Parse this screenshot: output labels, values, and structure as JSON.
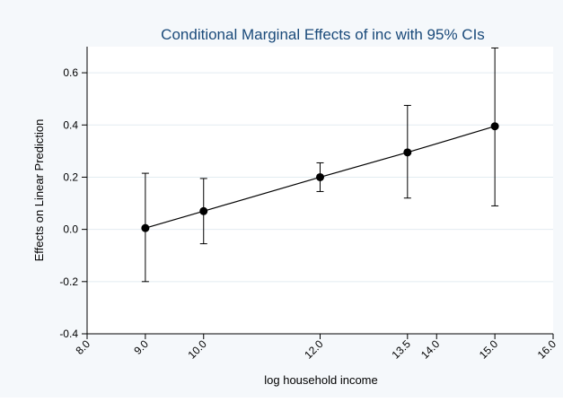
{
  "chart_data": {
    "type": "scatter",
    "title": "Conditional Marginal Effects of inc with 95% CIs",
    "xlabel": "log household income",
    "ylabel": "Effects on Linear Prediction",
    "xlim": [
      8.0,
      16.0
    ],
    "ylim": [
      -0.4,
      0.7
    ],
    "x_ticks": [
      8.0,
      9.0,
      10.0,
      12.0,
      13.5,
      14.0,
      15.0,
      16.0
    ],
    "x_tick_labels": [
      "8.0",
      "9.0",
      "10.0",
      "12.0",
      "13.5",
      "14.0",
      "15.0",
      "16.0"
    ],
    "y_ticks": [
      0.6,
      0.4,
      0.2,
      0.0,
      -0.2,
      -0.4
    ],
    "y_tick_labels": [
      "0.6",
      "0.4",
      "0.2",
      "0.0",
      "-0.2",
      "-0.4"
    ],
    "grid": true,
    "legend": "none",
    "connect_points": true,
    "points": [
      {
        "x": 9.0,
        "y": 0.005,
        "lower": -0.2,
        "upper": 0.215
      },
      {
        "x": 10.0,
        "y": 0.07,
        "lower": -0.055,
        "upper": 0.195
      },
      {
        "x": 12.0,
        "y": 0.2,
        "lower": 0.145,
        "upper": 0.255
      },
      {
        "x": 13.5,
        "y": 0.295,
        "lower": 0.12,
        "upper": 0.475
      },
      {
        "x": 15.0,
        "y": 0.395,
        "lower": 0.09,
        "upper": 0.695
      }
    ],
    "colors": {
      "title": "#1a4a7a",
      "background": "#f5f8fb",
      "plot_area": "#ffffff",
      "grid": "#e2ecf1",
      "marker": "#000000",
      "line": "#000000"
    }
  }
}
